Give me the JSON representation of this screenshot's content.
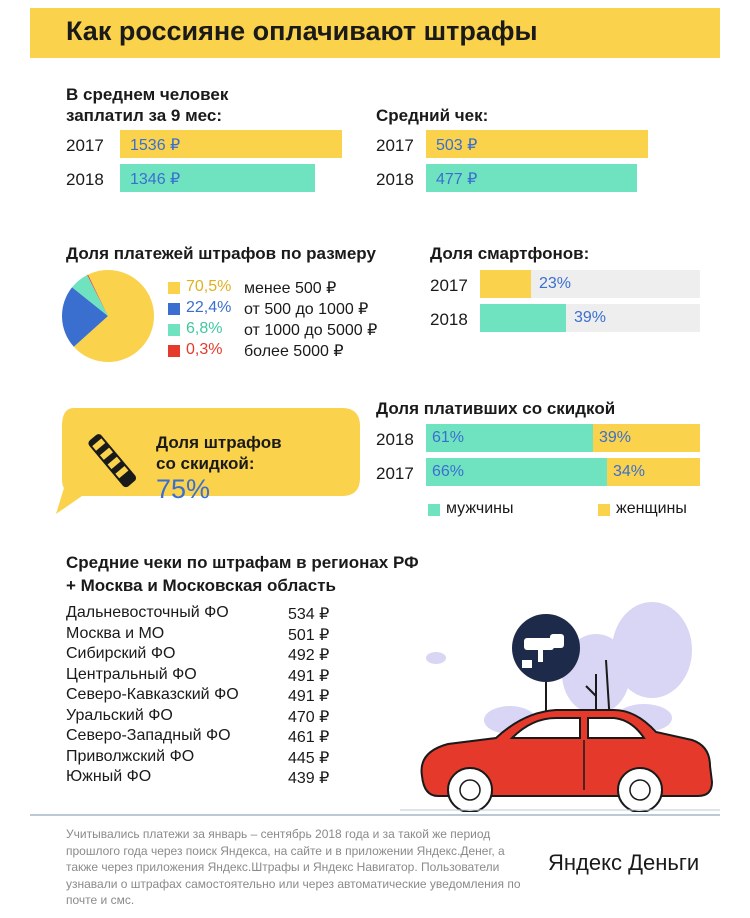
{
  "title": "Как россияне оплачивают штрафы",
  "colors": {
    "yellow": "#fad24b",
    "teal": "#6fe3c0",
    "blue": "#3a6fd0",
    "red": "#e53a2b",
    "light_gray": "#eeeeee"
  },
  "chart_data": [
    {
      "type": "bar",
      "title": "В среднем человек заплатил за 9 мес:",
      "categories": [
        "2017",
        "2018"
      ],
      "values": [
        1536,
        1346
      ],
      "labels": [
        "1536 ₽",
        "1346 ₽"
      ]
    },
    {
      "type": "bar",
      "title": "Средний чек:",
      "categories": [
        "2017",
        "2018"
      ],
      "values": [
        503,
        477
      ],
      "labels": [
        "503 ₽",
        "477 ₽"
      ]
    },
    {
      "type": "pie",
      "title": "Доля платежей штрафов по размеру",
      "slices": [
        {
          "pct_label": "70,5%",
          "value": 70.5,
          "label": "менее 500 ₽",
          "color": "#fad24b"
        },
        {
          "pct_label": "22,4%",
          "value": 22.4,
          "label": "от 500 до 1000 ₽",
          "color": "#3a6fd0"
        },
        {
          "pct_label": "6,8%",
          "value": 6.8,
          "label": "от 1000 до 5000 ₽",
          "color": "#6fe3c0"
        },
        {
          "pct_label": "0,3%",
          "value": 0.3,
          "label": "более 5000 ₽",
          "color": "#e53a2b"
        }
      ]
    },
    {
      "type": "bar",
      "title": "Доля смартфонов:",
      "categories": [
        "2017",
        "2018"
      ],
      "values": [
        23,
        39
      ],
      "labels": [
        "23%",
        "39%"
      ]
    },
    {
      "type": "bar",
      "title": "Доля плативших со скидкой",
      "categories": [
        "2018",
        "2017"
      ],
      "series": [
        {
          "name": "мужчины",
          "values": [
            61,
            66
          ],
          "labels": [
            "61%",
            "66%"
          ],
          "color": "#6fe3c0"
        },
        {
          "name": "женщины",
          "values": [
            39,
            34
          ],
          "labels": [
            "39%",
            "34%"
          ],
          "color": "#fad24b"
        }
      ]
    },
    {
      "type": "table",
      "title": "Средние чеки по штрафам в регионах РФ + Москва и Московская область",
      "rows": [
        {
          "region": "Дальневосточный ФО",
          "value": "534 ₽"
        },
        {
          "region": "Москва и МО",
          "value": "501 ₽"
        },
        {
          "region": "Сибирский ФО",
          "value": "492 ₽"
        },
        {
          "region": "Центральный ФО",
          "value": "491 ₽"
        },
        {
          "region": "Северо-Кавказский ФО",
          "value": "491 ₽"
        },
        {
          "region": "Уральский ФО",
          "value": "470 ₽"
        },
        {
          "region": "Северо-Западный ФО",
          "value": "461 ₽"
        },
        {
          "region": "Приволжский ФО",
          "value": "445 ₽"
        },
        {
          "region": "Южный ФО",
          "value": "439 ₽"
        }
      ]
    }
  ],
  "avg_paid_title_line1": "В среднем человек",
  "avg_paid_title_line2": "заплатил за 9 мес:",
  "region_title_line1": "Средние чеки по штрафам в регионах РФ",
  "region_title_line2": "+ Москва и Московская область",
  "discount_bubble": {
    "line1": "Доля штрафов",
    "line2": "со скидкой:",
    "value": "75%"
  },
  "footnote": "Учитывались платежи за январь – сентябрь 2018 года и за такой же период прошлого года через поиск Яндекса, на сайте и в приложении Яндекс.Денег, а также через приложения Яндекс.Штрафы и Яндекс Навигатор. Пользователи узнавали о штрафах самостоятельно или через автоматические уведомления по почте и смс.",
  "logo": "Яндекс Деньги"
}
